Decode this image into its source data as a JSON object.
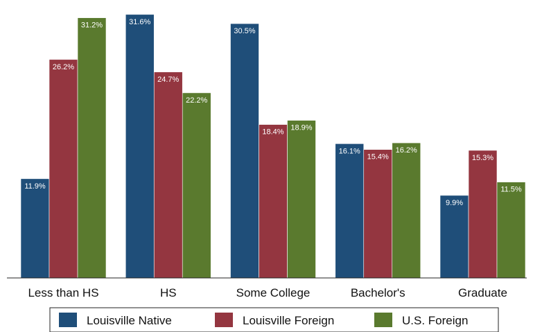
{
  "chart_data": {
    "type": "bar",
    "categories": [
      "Less than HS",
      "HS",
      "Some College",
      "Bachelor's",
      "Graduate"
    ],
    "series": [
      {
        "name": "Louisville Native",
        "color": "#1f4e79",
        "values": [
          11.9,
          31.6,
          30.5,
          16.1,
          9.9
        ]
      },
      {
        "name": "Louisville Foreign",
        "color": "#943640",
        "values": [
          26.2,
          24.7,
          18.4,
          15.4,
          15.3
        ]
      },
      {
        "name": "U.S. Foreign",
        "color": "#5a7a2e",
        "values": [
          31.2,
          22.2,
          18.9,
          16.2,
          11.5
        ]
      }
    ],
    "value_suffix": "%",
    "ylim": [
      0,
      32.5
    ],
    "grid": false,
    "legend_position": "bottom",
    "title": "",
    "xlabel": "",
    "ylabel": ""
  }
}
